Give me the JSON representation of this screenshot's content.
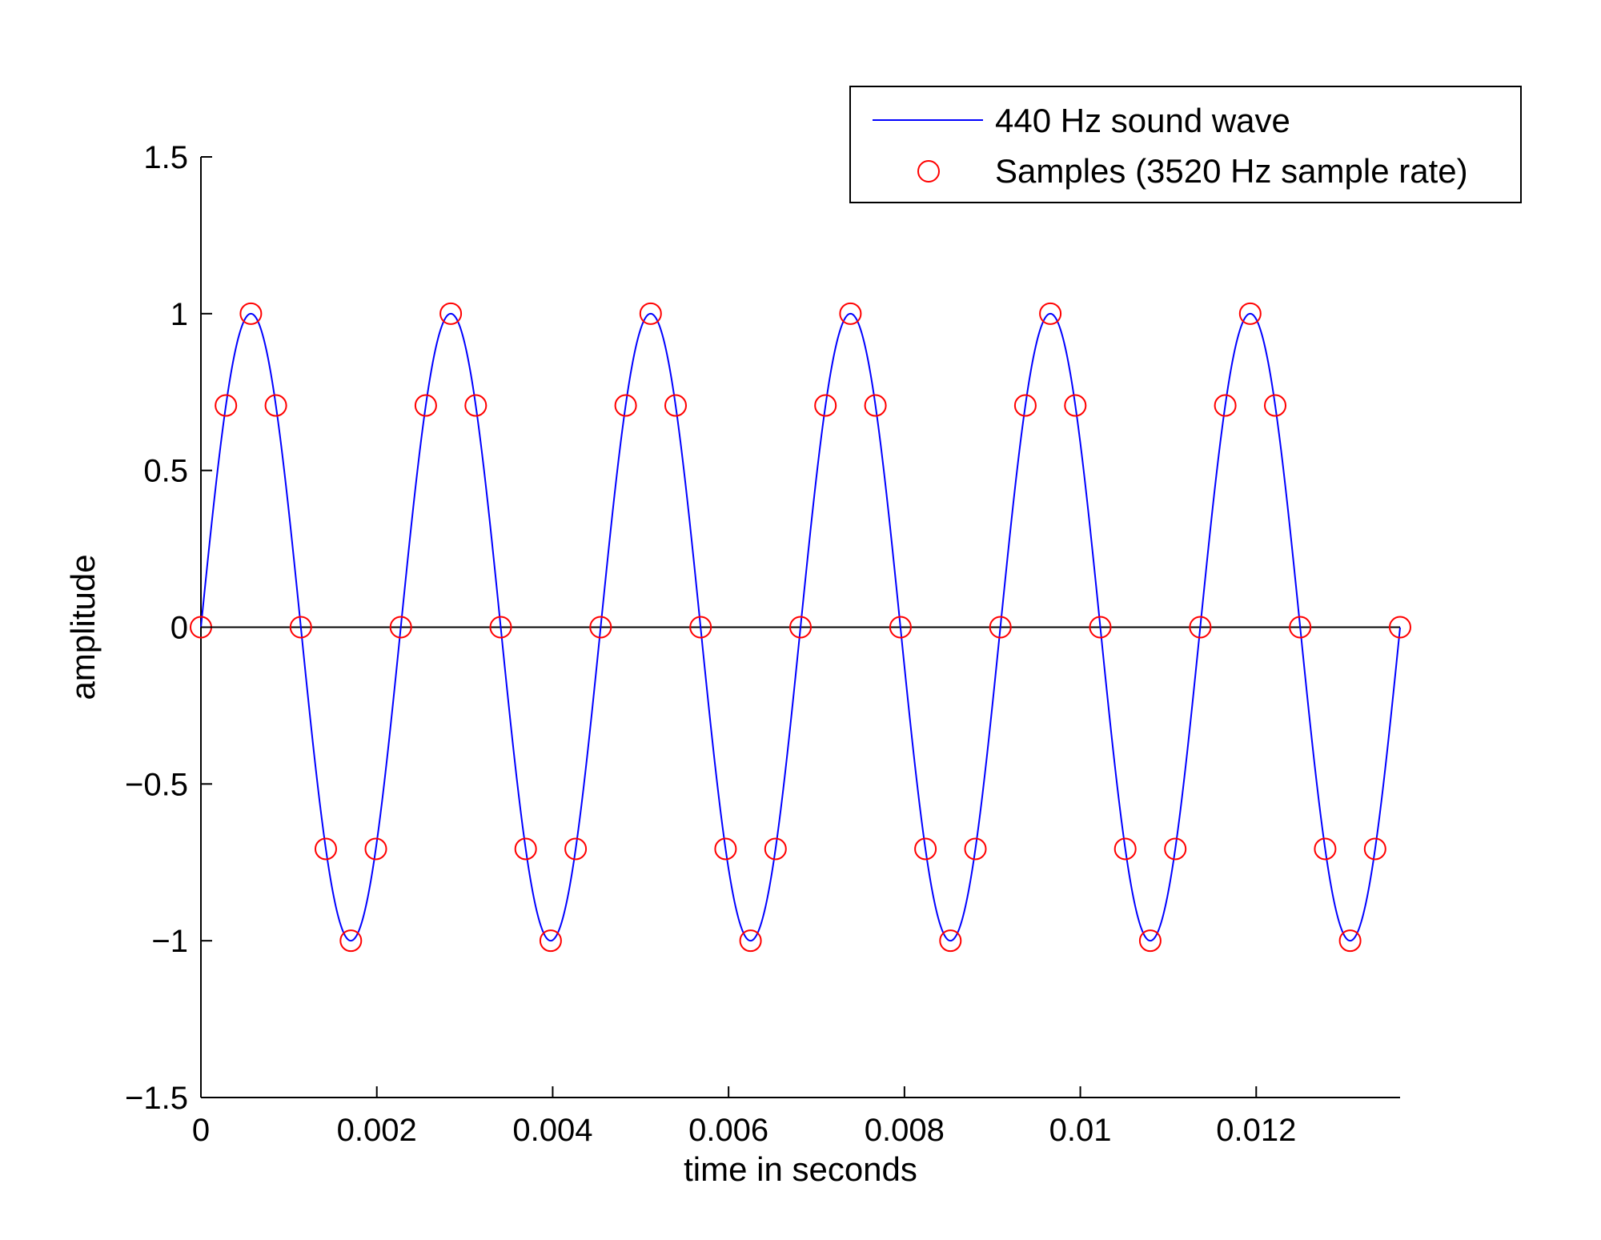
{
  "chart_data": {
    "type": "line",
    "xlabel": "time in seconds",
    "ylabel": "amplitude",
    "xlim": [
      0,
      0.013636
    ],
    "ylim": [
      -1.5,
      1.5
    ],
    "x_ticks": [
      0,
      0.002,
      0.004,
      0.006,
      0.008,
      0.01,
      0.012
    ],
    "x_tick_labels": [
      "0",
      "0.002",
      "0.004",
      "0.006",
      "0.008",
      "0.01",
      "0.012"
    ],
    "y_ticks": [
      -1.5,
      -1,
      -0.5,
      0,
      0.5,
      1,
      1.5
    ],
    "y_tick_labels": [
      "−1.5",
      "−1",
      "−0.5",
      "0",
      "0.5",
      "1",
      "1.5"
    ],
    "grid": false,
    "zero_line": true,
    "legend_position": "top-right",
    "series": [
      {
        "name": "440 Hz sound wave",
        "kind": "line",
        "color": "#0000ff",
        "function": "sine",
        "frequency_hz": 440,
        "amplitude": 1,
        "x_range": [
          0,
          0.013636
        ]
      },
      {
        "name": "Samples (3520 Hz sample rate)",
        "kind": "markers",
        "marker": "circle-open",
        "color": "#ff0000",
        "x": [
          0,
          0.000284,
          0.000568,
          0.000852,
          0.001136,
          0.00142,
          0.001705,
          0.001989,
          0.002273,
          0.002557,
          0.002841,
          0.003125,
          0.003409,
          0.003693,
          0.003977,
          0.004261,
          0.004545,
          0.00483,
          0.005114,
          0.005398,
          0.005682,
          0.005966,
          0.00625,
          0.006534,
          0.006818,
          0.007102,
          0.007386,
          0.00767,
          0.007955,
          0.008239,
          0.008523,
          0.008807,
          0.009091,
          0.009375,
          0.009659,
          0.009943,
          0.010227,
          0.010511,
          0.010795,
          0.01108,
          0.011364,
          0.011648,
          0.011932,
          0.012216,
          0.0125,
          0.012784,
          0.013068,
          0.013352,
          0.013636
        ],
        "y": [
          0,
          0.7071,
          1,
          0.7071,
          0,
          -0.7071,
          -1,
          -0.7071,
          0,
          0.7071,
          1,
          0.7071,
          0,
          -0.7071,
          -1,
          -0.7071,
          0,
          0.7071,
          1,
          0.7071,
          0,
          -0.7071,
          -1,
          -0.7071,
          0,
          0.7071,
          1,
          0.7071,
          0,
          -0.7071,
          -1,
          -0.7071,
          0,
          0.7071,
          1,
          0.7071,
          0,
          -0.7071,
          -1,
          -0.7071,
          0,
          0.7071,
          1,
          0.7071,
          0,
          -0.7071,
          -1,
          -0.7071,
          0
        ]
      }
    ]
  }
}
